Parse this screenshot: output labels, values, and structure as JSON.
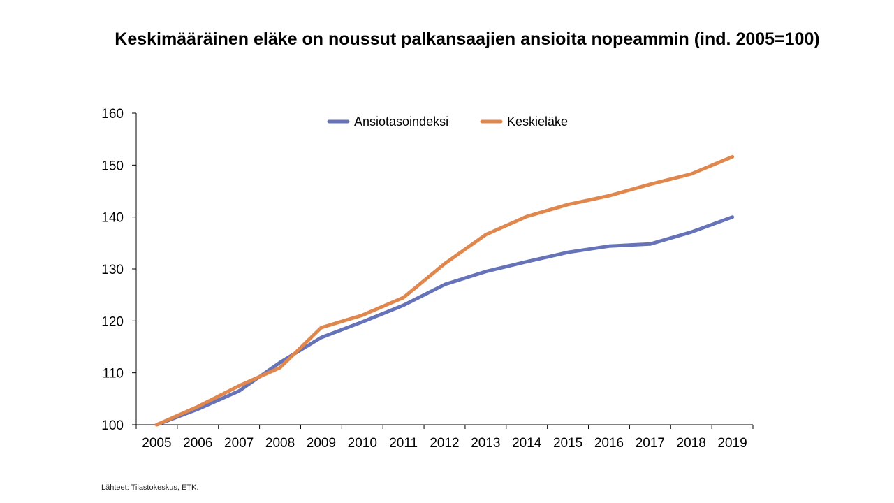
{
  "chart_data": {
    "type": "line",
    "title": "Keskimääräinen eläke on noussut palkansaajien ansioita nopeammin (ind. 2005=100)",
    "xlabel": "",
    "ylabel": "",
    "x": [
      "2005",
      "2006",
      "2007",
      "2008",
      "2009",
      "2010",
      "2011",
      "2012",
      "2013",
      "2014",
      "2015",
      "2016",
      "2017",
      "2018",
      "2019"
    ],
    "ylim": [
      100,
      160
    ],
    "yticks": [
      "100",
      "110",
      "120",
      "130",
      "140",
      "150",
      "160"
    ],
    "grid": false,
    "legend": "top-center",
    "series": [
      {
        "name": "Ansiotasoindeksi",
        "color": "#6673b8",
        "values": [
          100,
          103,
          106.5,
          112,
          116.8,
          119.8,
          123,
          127,
          129.5,
          131.4,
          133.2,
          134.4,
          134.8,
          137.1,
          140
        ]
      },
      {
        "name": "Keskieläke",
        "color": "#e0874e",
        "values": [
          100,
          103.5,
          107.5,
          111,
          118.7,
          121.1,
          124.5,
          131,
          136.6,
          140.1,
          142.4,
          144.1,
          146.3,
          148.3,
          151.6
        ]
      }
    ],
    "source": "Lähteet: Tilastokeskus, ETK."
  }
}
